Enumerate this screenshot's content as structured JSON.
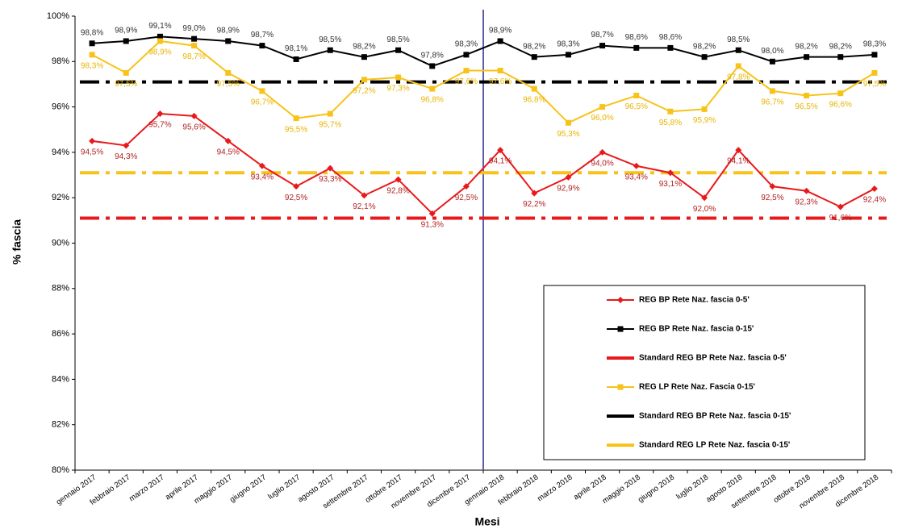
{
  "chart_data": {
    "type": "line",
    "y_label": "% fascia",
    "x_label": "Mesi",
    "categories": [
      "gennaio 2017",
      "febbraio 2017",
      "marzo 2017",
      "aprile 2017",
      "maggio 2017",
      "giugno 2017",
      "luglio 2017",
      "agosto 2017",
      "settembre 2017",
      "ottobre 2017",
      "novembre 2017",
      "dicembre 2017",
      "gennaio 2018",
      "febbraio 2018",
      "marzo 2018",
      "aprile 2018",
      "maggio 2018",
      "giugno 2018",
      "luglio 2018",
      "agosto 2018",
      "settembre 2018",
      "ottobre 2018",
      "novembre 2018",
      "dicembre 2018"
    ],
    "ylim": [
      80,
      100
    ],
    "yticks": [
      {
        "value": 80,
        "label": "80%"
      },
      {
        "value": 82,
        "label": "82%"
      },
      {
        "value": 84,
        "label": "84%"
      },
      {
        "value": 86,
        "label": "86%"
      },
      {
        "value": 88,
        "label": "88%"
      },
      {
        "value": 90,
        "label": "90%"
      },
      {
        "value": 92,
        "label": "92%"
      },
      {
        "value": 94,
        "label": "94%"
      },
      {
        "value": 96,
        "label": "96%"
      },
      {
        "value": 98,
        "label": "98%"
      },
      {
        "value": 100,
        "label": "100%"
      }
    ],
    "grid": false,
    "legend": "lower right",
    "series": [
      {
        "name": "REG BP Rete Naz. fascia 0-5'",
        "color": "#e8191b",
        "marker": "diamond",
        "label_color": "#b22222",
        "label_position": "below",
        "values": [
          94.5,
          94.3,
          95.7,
          95.6,
          94.5,
          93.4,
          92.5,
          93.3,
          92.1,
          92.8,
          91.3,
          92.5,
          94.1,
          92.2,
          92.9,
          94.0,
          93.4,
          93.1,
          92.0,
          94.1,
          92.5,
          92.3,
          91.6,
          92.4
        ],
        "value_labels": [
          "94,5%",
          "94,3%",
          "95,7%",
          "95,6%",
          "94,5%",
          "93,4%",
          "92,5%",
          "93,3%",
          "92,1%",
          "92,8%",
          "91,3%",
          "92,5%",
          "94,1%",
          "92,2%",
          "92,9%",
          "94,0%",
          "93,4%",
          "93,1%",
          "92,0%",
          "94,1%",
          "92,5%",
          "92,3%",
          "91,6%",
          "92,4%"
        ]
      },
      {
        "name": "REG BP Rete Naz. fascia 0-15'",
        "color": "#000000",
        "marker": "square",
        "label_color": "#333333",
        "label_position": "above",
        "values": [
          98.8,
          98.9,
          99.1,
          99.0,
          98.9,
          98.7,
          98.1,
          98.5,
          98.2,
          98.5,
          97.8,
          98.3,
          98.9,
          98.2,
          98.3,
          98.7,
          98.6,
          98.6,
          98.2,
          98.5,
          98.0,
          98.2,
          98.2,
          98.3
        ],
        "value_labels": [
          "98,8%",
          "98,9%",
          "99,1%",
          "99,0%",
          "98,9%",
          "98,7%",
          "98,1%",
          "98,5%",
          "98,2%",
          "98,5%",
          "97,8%",
          "98,3%",
          "98,9%",
          "98,2%",
          "98,3%",
          "98,7%",
          "98,6%",
          "98,6%",
          "98,2%",
          "98,5%",
          "98,0%",
          "98,2%",
          "98,2%",
          "98,3%"
        ]
      },
      {
        "name": "Standard REG BP Rete Naz. fascia 0-5'",
        "color": "#e8191b",
        "dash": "dashdot",
        "value": 91.1
      },
      {
        "name": "REG LP Rete Naz. Fascia 0-15'",
        "color": "#f7c31a",
        "marker": "square",
        "label_color": "#e8b400",
        "label_position": "below",
        "values": [
          98.3,
          97.5,
          98.9,
          98.7,
          97.5,
          96.7,
          95.5,
          95.7,
          97.2,
          97.3,
          96.8,
          97.6,
          97.6,
          96.8,
          95.3,
          96.0,
          96.5,
          95.8,
          95.9,
          97.8,
          96.7,
          96.5,
          96.6,
          97.5
        ],
        "value_labels": [
          "98,3%",
          "97,5%",
          "98,9%",
          "98,7%",
          "97,5%",
          "96,7%",
          "95,5%",
          "95,7%",
          "97,2%",
          "97,3%",
          "96,8%",
          "97,6%",
          "97,6%",
          "96,8%",
          "95,3%",
          "96,0%",
          "96,5%",
          "95,8%",
          "95,9%",
          "97,8%",
          "96,7%",
          "96,5%",
          "96,6%",
          "97,5%"
        ]
      },
      {
        "name": "Standard REG BP Rete Naz. fascia 0-15'",
        "color": "#000000",
        "dash": "dashdot",
        "value": 97.1
      },
      {
        "name": "Standard REG LP Rete Naz. fascia 0-15'",
        "color": "#f7c31a",
        "dash": "dashdot",
        "value": 93.1
      }
    ]
  }
}
